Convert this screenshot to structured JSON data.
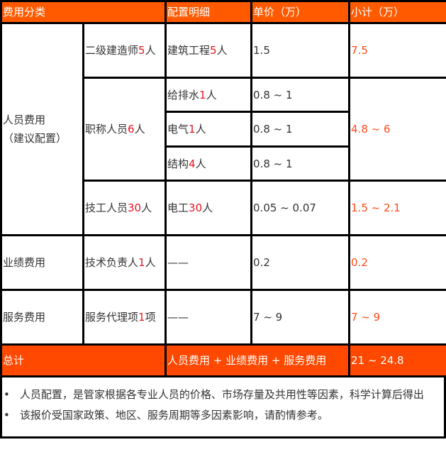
{
  "header": {
    "category": "费用分类",
    "detail": "配置明细",
    "unit_price": "单价（万）",
    "subtotal": "小计（万）"
  },
  "groups": {
    "personnel": {
      "label_line1": "人员费用",
      "label_line2": "（建议配置）"
    },
    "performance": {
      "label": "业绩费用"
    },
    "service": {
      "label": "服务费用"
    }
  },
  "rows": {
    "constructor": {
      "role_pre": "二级建造师",
      "role_num": "5",
      "role_post": "人",
      "detail_pre": "建筑工程",
      "detail_num": "5",
      "detail_post": "人",
      "price": "1.5",
      "subtotal": "7.5"
    },
    "titled": {
      "role_pre": "职称人员",
      "role_num": "6",
      "role_post": "人",
      "subtotal": "4.8 ~ 6",
      "items": [
        {
          "detail_pre": "给排水",
          "detail_num": "1",
          "detail_post": "人",
          "price": "0.8 ~ 1"
        },
        {
          "detail_pre": "电气",
          "detail_num": "1",
          "detail_post": "人",
          "price": "0.8 ~ 1"
        },
        {
          "detail_pre": "结构",
          "detail_num": "4",
          "detail_post": "人",
          "price": "0.8 ~ 1"
        }
      ]
    },
    "technician": {
      "role_pre": "技工人员",
      "role_num": "30",
      "role_post": "人",
      "detail_pre": "电工",
      "detail_num": "30",
      "detail_post": "人",
      "price": "0.05 ~ 0.07",
      "subtotal": "1.5 ~ 2.1"
    },
    "tech_lead": {
      "role_pre": "技术负责人",
      "role_num": "1",
      "role_post": "人",
      "detail": "——",
      "price": "0.2",
      "subtotal": "0.2"
    },
    "agency": {
      "role_pre": "服务代理项",
      "role_num": "1",
      "role_post": "项",
      "detail": "——",
      "price": "7 ~ 9",
      "subtotal": "7 ~ 9"
    }
  },
  "total": {
    "label": "总计",
    "formula": "人员费用 + 业绩费用 + 服务费用",
    "value": "21 ~ 24.8"
  },
  "notes": {
    "bullet": "•",
    "items": [
      "人员配置，是管家根据各专业人员的价格、市场存量及共用性等因素，科学计算后得出",
      "该报价受国家政策、地区、服务周期等多因素影响，请酌情参考。"
    ]
  },
  "colors": {
    "header_bg": "#ff5a00",
    "total_bg": "#ff4800",
    "number_red": "#e8141e",
    "subtotal": "#ff4a1a"
  }
}
